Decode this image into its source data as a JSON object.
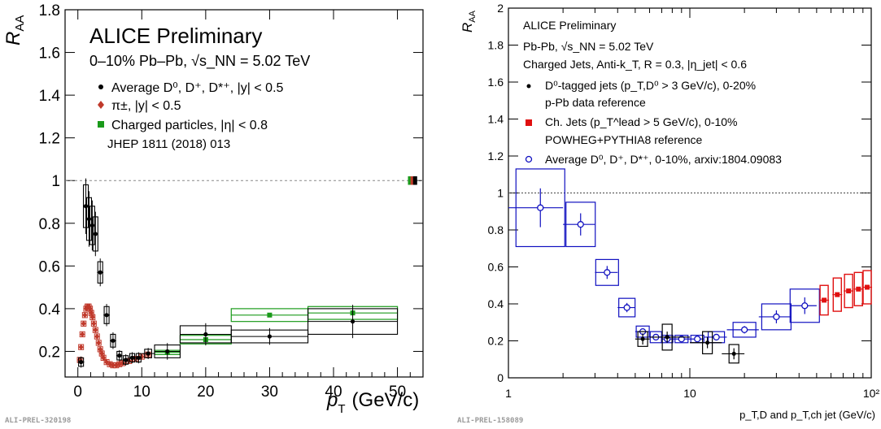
{
  "left_panel": {
    "y_label": "R",
    "y_label_sub": "AA",
    "x_label": "p",
    "x_label_sub": "T",
    "x_label_unit": "(GeV/c)",
    "title": "ALICE Preliminary",
    "subtitle": "0–10% Pb–Pb, √s_NN = 5.02 TeV",
    "legend": [
      {
        "label": "Average D⁰, D⁺, D*⁺, |y| < 0.5",
        "color": "#000000",
        "marker": "circle"
      },
      {
        "label": "π±, |y| < 0.5",
        "color": "#c0392b",
        "marker": "diamond"
      },
      {
        "label": "Charged particles, |η| < 0.8",
        "color": "#1a9a1a",
        "marker": "square"
      }
    ],
    "reference": "JHEP 1811 (2018) 013",
    "watermark": "ALI-PREL-320198"
  },
  "right_panel": {
    "y_label": "R",
    "y_label_sub": "AA",
    "x_label": "p_T,D and p_T,ch jet (GeV/c)",
    "title": "ALICE Preliminary",
    "subtitle": "Pb-Pb, √s_NN = 5.02 TeV",
    "subtitle2": "Charged Jets, Anti-k_T, R = 0.3, |η_jet| < 0.6",
    "legend": [
      {
        "label": "D⁰-tagged jets (p_T,D⁰ > 3 GeV/c), 0-20%",
        "sublabel": "p-Pb data reference",
        "color": "#000000",
        "marker": "circle"
      },
      {
        "label": "Ch. Jets (p_T^lead > 5 GeV/c), 0-10%",
        "sublabel": "POWHEG+PYTHIA8 reference",
        "color": "#e01010",
        "marker": "square"
      },
      {
        "label": "Average D⁰, D⁺, D*⁺, 0-10%, arxiv:1804.09083",
        "sublabel": "",
        "color": "#1010c0",
        "marker": "open-circle"
      }
    ],
    "watermark": "ALI-PREL-158089"
  },
  "chart_data": [
    {
      "type": "scatter",
      "xlim": [
        -2,
        54
      ],
      "ylim": [
        0.08,
        1.8
      ],
      "x_ticks": [
        0,
        10,
        20,
        30,
        40,
        50
      ],
      "y_ticks": [
        0.2,
        0.4,
        0.6,
        0.8,
        1,
        1.2,
        1.4,
        1.6,
        1.8
      ],
      "reference_line": 1,
      "series": [
        {
          "name": "Average D⁰, D⁺, D*⁺, |y| < 0.5",
          "color": "#000000",
          "x": [
            0.5,
            1.25,
            1.75,
            2.25,
            2.75,
            3.5,
            4.5,
            5.5,
            6.5,
            7.5,
            8.5,
            9.5,
            11,
            14,
            20,
            30,
            43
          ],
          "xerr": [
            0.5,
            0.25,
            0.25,
            0.25,
            0.25,
            0.5,
            0.5,
            0.5,
            0.5,
            0.5,
            0.5,
            0.5,
            1,
            2,
            4,
            6,
            7
          ],
          "y": [
            0.15,
            0.88,
            0.82,
            0.79,
            0.75,
            0.57,
            0.37,
            0.25,
            0.18,
            0.16,
            0.17,
            0.17,
            0.19,
            0.2,
            0.28,
            0.27,
            0.34
          ],
          "syst": [
            0.02,
            0.1,
            0.1,
            0.09,
            0.08,
            0.05,
            0.04,
            0.03,
            0.02,
            0.02,
            0.02,
            0.02,
            0.02,
            0.03,
            0.04,
            0.03,
            0.06
          ]
        },
        {
          "name": "π±, |y| < 0.5",
          "color": "#c0392b",
          "x": [
            0.3,
            0.5,
            0.7,
            0.9,
            1.1,
            1.3,
            1.5,
            1.7,
            1.9,
            2.1,
            2.3,
            2.5,
            2.75,
            3.0,
            3.25,
            3.5,
            3.75,
            4.0,
            4.5,
            5.0,
            5.5,
            6.0,
            6.5,
            7.0,
            8.0,
            9.0,
            10.0,
            11.0
          ],
          "y": [
            0.16,
            0.22,
            0.28,
            0.33,
            0.37,
            0.4,
            0.41,
            0.41,
            0.4,
            0.38,
            0.36,
            0.33,
            0.3,
            0.27,
            0.24,
            0.21,
            0.19,
            0.17,
            0.15,
            0.14,
            0.135,
            0.135,
            0.14,
            0.145,
            0.155,
            0.165,
            0.175,
            0.185
          ]
        },
        {
          "name": "Charged particles, |η| < 0.8",
          "color": "#1a9a1a",
          "x": [
            14,
            20,
            30,
            43
          ],
          "xerr": [
            2,
            4,
            6,
            7
          ],
          "y": [
            0.195,
            0.255,
            0.37,
            0.38
          ],
          "syst": [
            0.01,
            0.02,
            0.03,
            0.03
          ]
        }
      ]
    },
    {
      "type": "scatter",
      "xscale": "log",
      "xlim": [
        1,
        100
      ],
      "ylim": [
        0,
        2
      ],
      "x_tick_labels": [
        "1",
        "10",
        "10²"
      ],
      "y_ticks": [
        0,
        0.2,
        0.4,
        0.6,
        0.8,
        1,
        1.2,
        1.4,
        1.6,
        1.8,
        2
      ],
      "reference_line": 1,
      "series": [
        {
          "name": "D⁰-tagged jets (p_T,D⁰ > 3 GeV/c), 0-20%",
          "color": "#000000",
          "x": [
            5.5,
            7.5,
            12.5,
            17.5
          ],
          "y": [
            0.21,
            0.22,
            0.19,
            0.13
          ],
          "syst": [
            0.04,
            0.07,
            0.06,
            0.05
          ]
        },
        {
          "name": "Ch. Jets (p_T^lead > 5 GeV/c), 0-10%",
          "color": "#e01010",
          "x": [
            55,
            65,
            75,
            85,
            95
          ],
          "y": [
            0.42,
            0.45,
            0.47,
            0.48,
            0.49
          ],
          "syst": [
            0.08,
            0.09,
            0.09,
            0.09,
            0.09
          ]
        },
        {
          "name": "Average D⁰, D⁺, D*⁺, 0-10%, arxiv:1804.09083",
          "color": "#1010c0",
          "x": [
            1.5,
            2.5,
            3.5,
            4.5,
            5.5,
            6.5,
            7.5,
            9,
            11,
            14,
            20,
            30,
            43
          ],
          "y": [
            0.92,
            0.83,
            0.57,
            0.38,
            0.25,
            0.22,
            0.21,
            0.21,
            0.21,
            0.22,
            0.26,
            0.33,
            0.39
          ],
          "syst": [
            0.21,
            0.12,
            0.07,
            0.05,
            0.03,
            0.03,
            0.02,
            0.02,
            0.02,
            0.03,
            0.04,
            0.07,
            0.09
          ]
        }
      ]
    }
  ]
}
